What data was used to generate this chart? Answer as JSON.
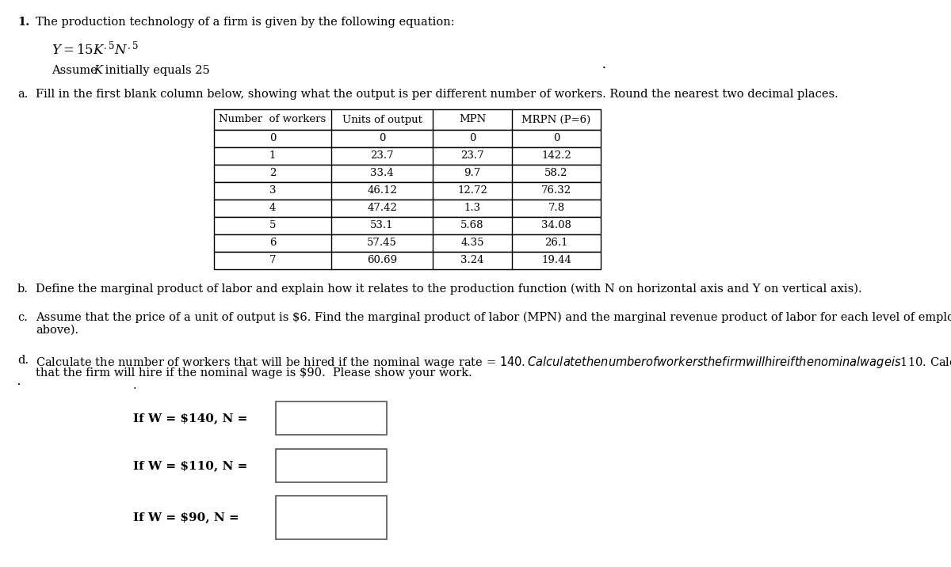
{
  "table_headers": [
    "Number  of workers",
    "Units of output",
    "MPN",
    "MRPN (P=6)"
  ],
  "table_data": [
    [
      "0",
      "0",
      "0",
      "0"
    ],
    [
      "1",
      "23.7",
      "23.7",
      "142.2"
    ],
    [
      "2",
      "33.4",
      "9.7",
      "58.2"
    ],
    [
      "3",
      "46.12",
      "12.72",
      "76.32"
    ],
    [
      "4",
      "47.42",
      "1.3",
      "7.8"
    ],
    [
      "5",
      "53.1",
      "5.68",
      "34.08"
    ],
    [
      "6",
      "57.45",
      "4.35",
      "26.1"
    ],
    [
      "7",
      "60.69",
      "3.24",
      "19.44"
    ]
  ],
  "wage_labels": [
    "If W = $140, N =",
    "If W = $110, N =",
    "If W = $90, N ="
  ],
  "bg_color": "#ffffff",
  "text_color": "#000000",
  "font_family": "serif"
}
